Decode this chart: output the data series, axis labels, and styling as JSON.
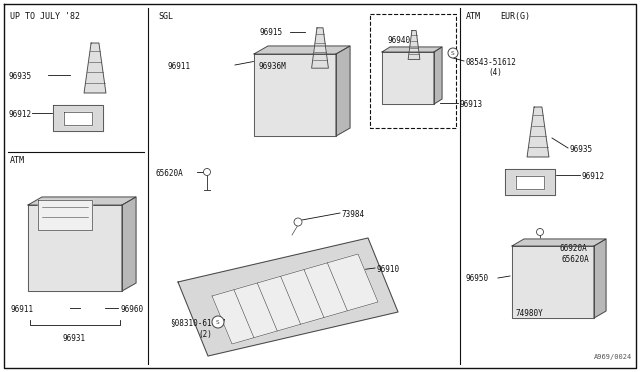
{
  "bg_color": "#ffffff",
  "border_color": "#111111",
  "diagram_code": "A969/0024",
  "label_up_to_july": "UP TO JULY '82",
  "label_sgl": "SGL",
  "label_atm_left": "ATM",
  "label_atm_right": "ATM",
  "label_eur": "EUR(G)",
  "fs": 6.0,
  "fs_small": 5.5,
  "dkgray": "#444444",
  "ltgray": "#d8d8d8",
  "mdgray": "#c0c0c0"
}
